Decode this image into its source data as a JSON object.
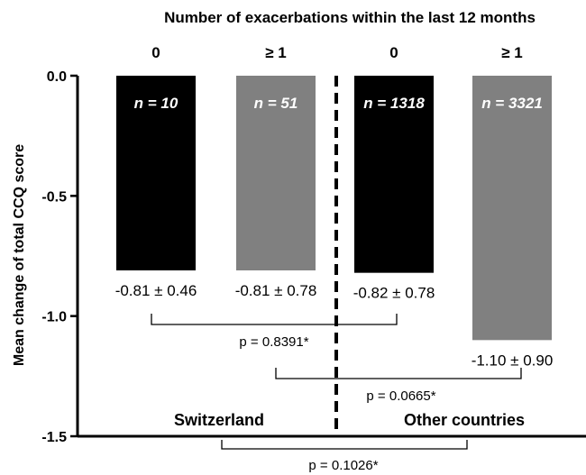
{
  "chart_data": {
    "type": "bar",
    "title": "Number of exacerbations within the last 12 months",
    "ylabel": "Mean change of total CCQ score",
    "xlabel": "",
    "ylim": [
      -1.5,
      0.0
    ],
    "yticks": [
      "0.0",
      "-0.5",
      "-1.0",
      "-1.5"
    ],
    "ytick_values": [
      0.0,
      -0.5,
      -1.0,
      -1.5
    ],
    "categories": [
      "0",
      "≥ 1",
      "0",
      "≥ 1"
    ],
    "values": [
      -0.81,
      -0.81,
      -0.82,
      -1.1
    ],
    "n_labels": [
      "n = 10",
      "n = 51",
      "n = 1318",
      "n = 3321"
    ],
    "value_labels": [
      "-0.81 ± 0.46",
      "-0.81 ± 0.78",
      "-0.82 ± 0.78",
      "-1.10 ± 0.90"
    ],
    "bar_colors": [
      "#000000",
      "#808080",
      "#000000",
      "#808080"
    ],
    "groups": [
      "Switzerland",
      "Other countries"
    ],
    "comparisons": [
      {
        "from": 0,
        "to": 2,
        "label": "p = 0.8391*"
      },
      {
        "from": 1,
        "to": 3,
        "label": "p = 0.0665*"
      },
      {
        "from": 0,
        "to": 3,
        "label": "p = 0.1026*"
      }
    ],
    "divider": "dashed"
  }
}
